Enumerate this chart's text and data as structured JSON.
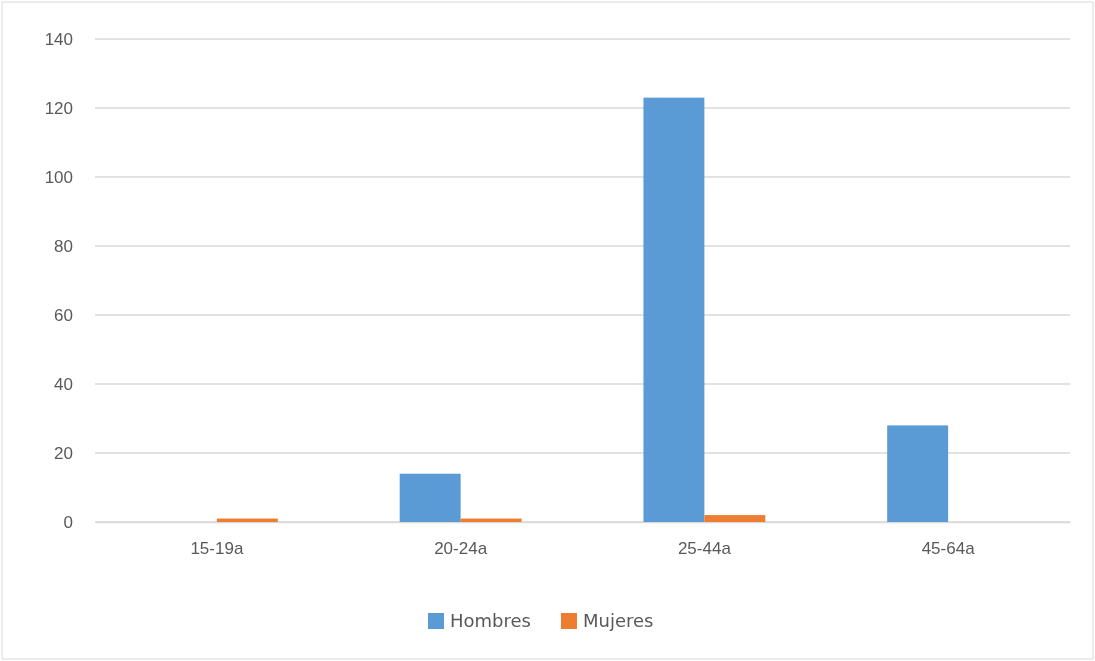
{
  "chart_data": {
    "type": "bar",
    "categories": [
      "15-19a",
      "20-24a",
      "25-44a",
      "45-64a"
    ],
    "series": [
      {
        "name": "Hombres",
        "color": "#5b9bd5",
        "values": [
          0,
          14,
          123,
          28
        ]
      },
      {
        "name": "Mujeres",
        "color": "#ed7d31",
        "values": [
          1,
          1,
          2,
          0
        ]
      }
    ],
    "ylim": [
      0,
      140
    ],
    "yticks": [
      0,
      20,
      40,
      60,
      80,
      100,
      120,
      140
    ],
    "grid": "y",
    "legend": "bottom"
  }
}
